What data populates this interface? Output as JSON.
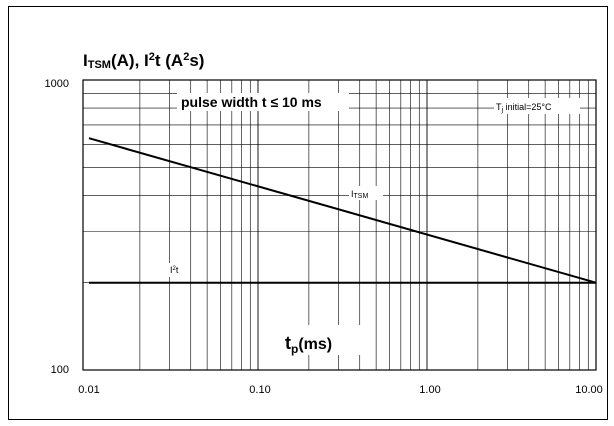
{
  "chart_data": {
    "type": "line",
    "title_parts": {
      "i": "I",
      "tsm_sub": "TSM",
      "a_part": "(A), I",
      "sq1": "2",
      "t_part": "t (A",
      "sq2": "2",
      "s_part": "s)"
    },
    "xlabel_parts": {
      "t": "t",
      "p_sub": "p",
      "ms": "(ms)"
    },
    "x_axis": {
      "scale": "log",
      "xlim": [
        0.01,
        10
      ],
      "ticks": [
        "0.01",
        "0.10",
        "1.00",
        "10.00"
      ]
    },
    "y_axis": {
      "scale": "log",
      "ylim": [
        100,
        1000
      ],
      "ticks": [
        "100",
        "1000"
      ]
    },
    "grid": true,
    "annotations": {
      "pulse_width": "pulse width t ≤ 10 ms",
      "tj_prefix": "T",
      "tj_sub": "j",
      "tj_suffix": " initial=25°C",
      "i2t_i": "I",
      "i2t_sq": "2",
      "i2t_t": "t",
      "itsm_i": "I",
      "itsm_sub": "TSM"
    },
    "series": [
      {
        "name": "ITSM",
        "x": [
          0.01,
          10
        ],
        "y": [
          630,
          200
        ]
      },
      {
        "name": "I2t",
        "x": [
          0.01,
          10
        ],
        "y": [
          200,
          200
        ]
      }
    ]
  }
}
